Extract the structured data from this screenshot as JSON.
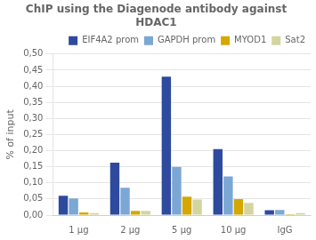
{
  "chart_data": {
    "type": "bar",
    "title": "ChIP using the Diagenode antibody against\nHDAC1",
    "ylabel": "% of input",
    "categories": [
      "1 μg",
      "2 μg",
      "5 μg",
      "10 μg",
      "IgG"
    ],
    "series": [
      {
        "name": "EIF4A2 prom",
        "color": "#2E4A9E",
        "values": [
          0.06,
          0.163,
          0.43,
          0.205,
          0.015
        ]
      },
      {
        "name": "GAPDH prom",
        "color": "#7BA7D4",
        "values": [
          0.052,
          0.085,
          0.15,
          0.12,
          0.016
        ]
      },
      {
        "name": "MYOD1",
        "color": "#D4A800",
        "values": [
          0.008,
          0.013,
          0.057,
          0.05,
          0.003
        ]
      },
      {
        "name": "Sat2",
        "color": "#D4D4A0",
        "values": [
          0.006,
          0.013,
          0.048,
          0.038,
          0.006
        ]
      }
    ],
    "ylim": [
      0,
      0.5
    ],
    "yticks": [
      {
        "value": 0.0,
        "label": "0,00"
      },
      {
        "value": 0.05,
        "label": "0,05"
      },
      {
        "value": 0.1,
        "label": "0,10"
      },
      {
        "value": 0.15,
        "label": "0,15"
      },
      {
        "value": 0.2,
        "label": "0,20"
      },
      {
        "value": 0.25,
        "label": "0,25"
      },
      {
        "value": 0.3,
        "label": "0,30"
      },
      {
        "value": 0.35,
        "label": "0,35"
      },
      {
        "value": 0.4,
        "label": "0,40"
      },
      {
        "value": 0.45,
        "label": "0,45"
      },
      {
        "value": 0.5,
        "label": "0,50"
      }
    ],
    "grid": true,
    "legend": "upper right"
  }
}
